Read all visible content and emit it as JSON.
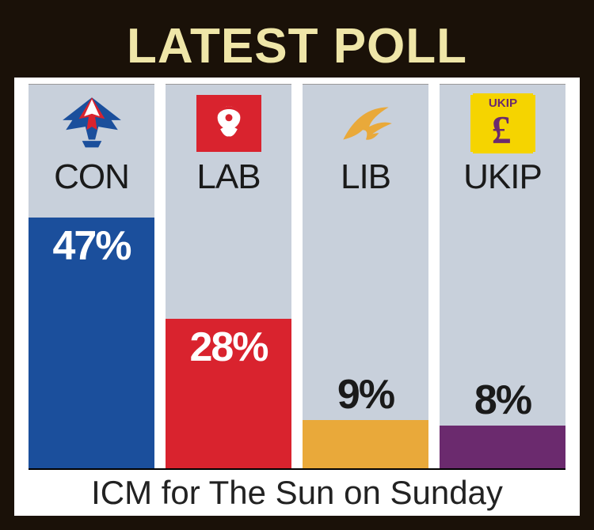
{
  "frame": {
    "border_color": "#1a1108",
    "background_color": "#ffffff",
    "title_bg": "#1a1108",
    "title_color": "#efe6a8",
    "col_bg": "#c8d0db"
  },
  "title": "LATEST POLL",
  "footer": "ICM for The Sun on Sunday",
  "chart": {
    "type": "bar",
    "max_value": 50,
    "value_fontsize": 52,
    "label_fontsize": 44,
    "parties": [
      {
        "code": "CON",
        "value": 47,
        "display": "47%",
        "bar_color": "#1b4f9c",
        "value_color": "#ffffff",
        "value_inside": true,
        "logo_bg": "transparent"
      },
      {
        "code": "LAB",
        "value": 28,
        "display": "28%",
        "bar_color": "#d9232e",
        "value_color": "#ffffff",
        "value_inside": true,
        "logo_bg": "#d9232e"
      },
      {
        "code": "LIB",
        "value": 9,
        "display": "9%",
        "bar_color": "#e9a93a",
        "value_color": "#1a1a1a",
        "value_inside": false,
        "logo_bg": "transparent"
      },
      {
        "code": "UKIP",
        "value": 8,
        "display": "8%",
        "bar_color": "#6b2a6e",
        "value_color": "#1a1a1a",
        "value_inside": false,
        "logo_bg": "#f5d400"
      }
    ]
  }
}
